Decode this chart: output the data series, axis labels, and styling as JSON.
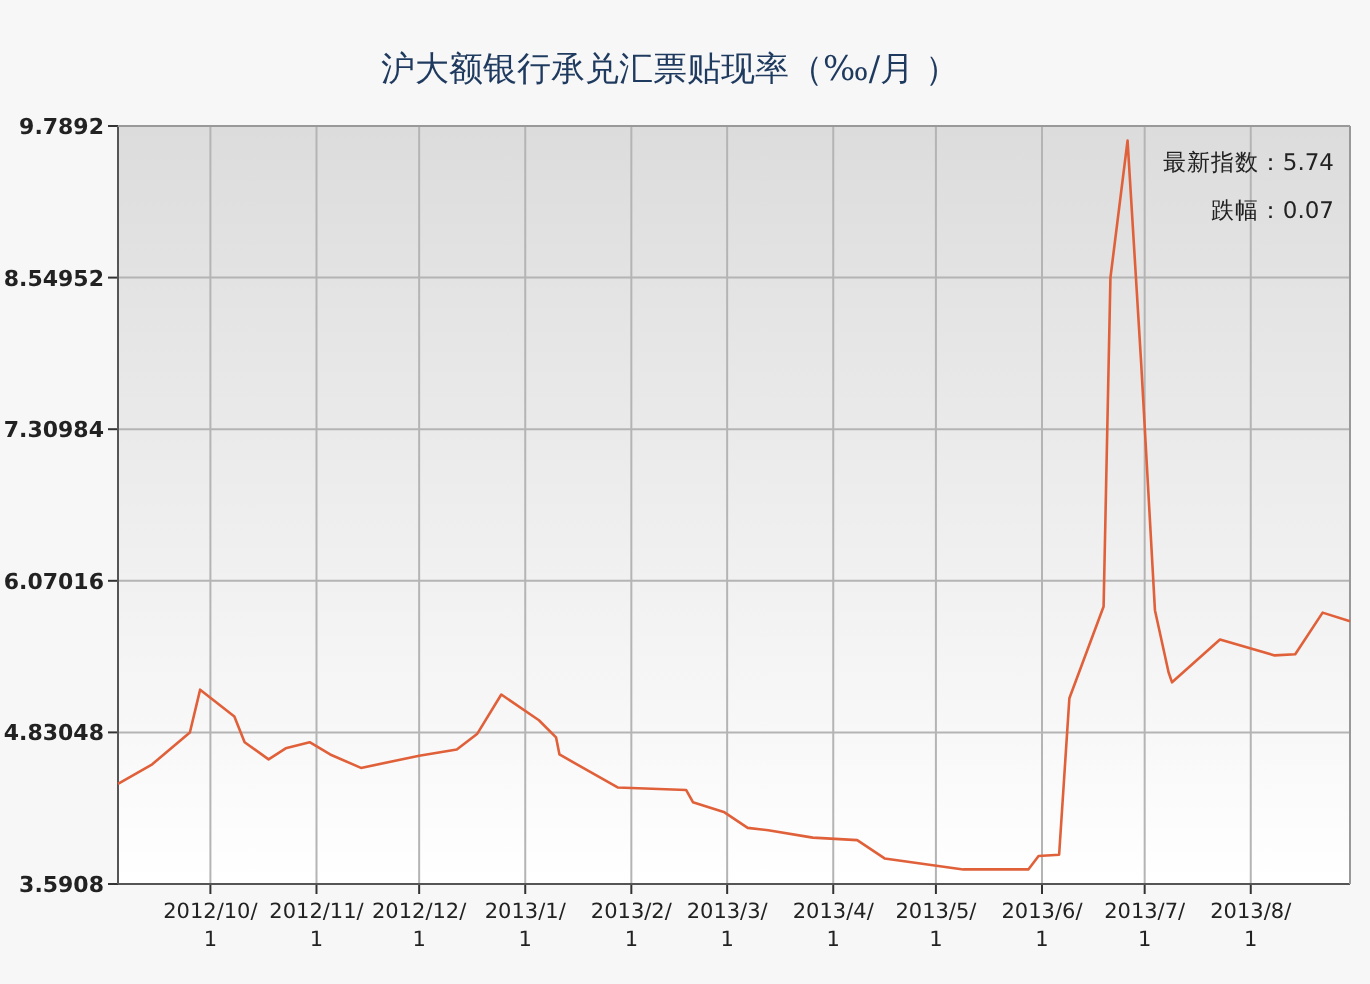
{
  "chart_data": {
    "type": "line",
    "title": "沪大额银行承兑汇票贴现率（‰/月 ）",
    "x": [
      "2012-09-04",
      "2012-09-14",
      "2012-09-25",
      "2012-09-28",
      "2012-10-08",
      "2012-10-11",
      "2012-10-18",
      "2012-10-23",
      "2012-10-30",
      "2012-11-05",
      "2012-11-14",
      "2012-12-01",
      "2012-12-12",
      "2012-12-18",
      "2012-12-25",
      "2013-01-05",
      "2013-01-10",
      "2013-01-11",
      "2013-01-28",
      "2013-02-17",
      "2013-02-19",
      "2013-02-28",
      "2013-03-07",
      "2013-03-13",
      "2013-03-26",
      "2013-04-08",
      "2013-04-16",
      "2013-05-09",
      "2013-05-28",
      "2013-05-31",
      "2013-06-06",
      "2013-06-09",
      "2013-06-19",
      "2013-06-21",
      "2013-06-26",
      "2013-06-30",
      "2013-07-04",
      "2013-07-08",
      "2013-07-09",
      "2013-07-23",
      "2013-08-08",
      "2013-08-14",
      "2013-08-22",
      "2013-08-30"
    ],
    "series": [
      {
        "color": "#e0603a",
        "values": [
          4.41,
          4.57,
          4.83,
          5.18,
          4.96,
          4.75,
          4.61,
          4.7,
          4.75,
          4.65,
          4.54,
          4.64,
          4.69,
          4.82,
          5.14,
          4.93,
          4.79,
          4.65,
          4.38,
          4.36,
          4.26,
          4.18,
          4.05,
          4.03,
          3.97,
          3.95,
          3.8,
          3.71,
          3.71,
          3.82,
          3.83,
          5.11,
          5.86,
          8.55,
          9.67,
          7.84,
          5.83,
          5.32,
          5.24,
          5.59,
          5.46,
          5.47,
          5.81,
          5.74
        ]
      }
    ],
    "xlim": [
      "2012-09-04",
      "2013-08-30"
    ],
    "xticks": [
      {
        "value": "2012-10-01",
        "label": "2012/10/1"
      },
      {
        "value": "2012-11-01",
        "label": "2012/11/1"
      },
      {
        "value": "2012-12-01",
        "label": "2012/12/1"
      },
      {
        "value": "2013-01-01",
        "label": "2013/1/1"
      },
      {
        "value": "2013-02-01",
        "label": "2013/2/1"
      },
      {
        "value": "2013-03-01",
        "label": "2013/3/1"
      },
      {
        "value": "2013-04-01",
        "label": "2013/4/1"
      },
      {
        "value": "2013-05-01",
        "label": "2013/5/1"
      },
      {
        "value": "2013-06-01",
        "label": "2013/6/1"
      },
      {
        "value": "2013-07-01",
        "label": "2013/7/1"
      },
      {
        "value": "2013-08-01",
        "label": "2013/8/1"
      }
    ],
    "ylim": [
      3.5908,
      9.7892
    ],
    "yticks": [
      3.5908,
      4.83048,
      6.07016,
      7.30984,
      8.54952,
      9.7892
    ],
    "grid": true,
    "annotations": [
      "最新指数：5.74",
      "跌幅：0.07"
    ]
  }
}
